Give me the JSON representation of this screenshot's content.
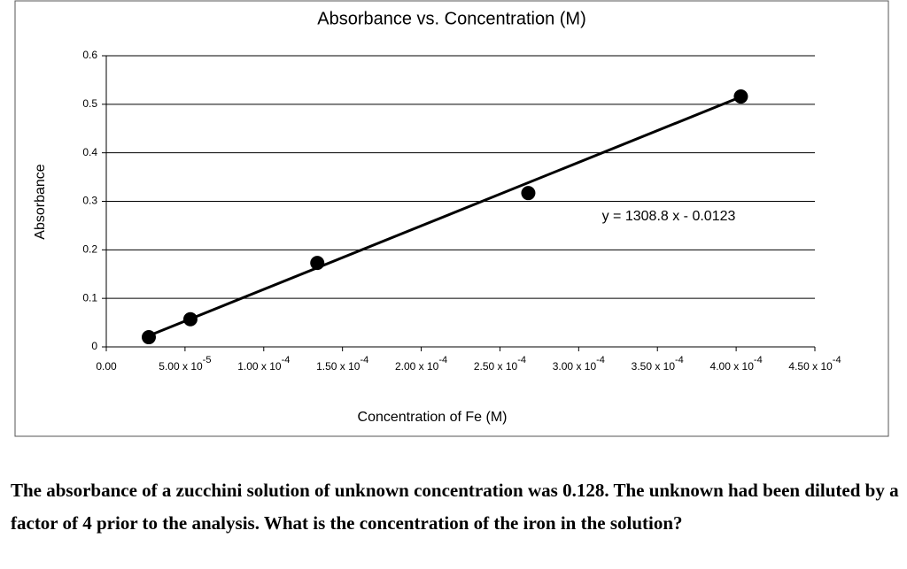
{
  "chart_data": {
    "type": "scatter",
    "title": "Absorbance vs. Concentration (M)",
    "x_label": "Concentration of Fe (M)",
    "y_label": "Absorbance",
    "x": [
      2.7e-05,
      5.34e-05,
      0.000134,
      0.000268,
      0.000403
    ],
    "values": [
      0.02,
      0.057,
      0.173,
      0.317,
      0.516
    ],
    "color": "#000000",
    "trendline": {
      "slope": 1308.8,
      "intercept": -0.0123,
      "label": "y = 1308.8 x - 0.0123"
    },
    "xlim": [
      0,
      0.00045
    ],
    "xticks": [
      {
        "value": 0,
        "label": "0.00"
      },
      {
        "value": 5e-05,
        "label": "5.00 x 10",
        "exponent": "-5"
      },
      {
        "value": 0.0001,
        "label": "1.00 x 10",
        "exponent": "-4"
      },
      {
        "value": 0.00015,
        "label": "1.50 x 10",
        "exponent": "-4"
      },
      {
        "value": 0.0002,
        "label": "2.00 x 10",
        "exponent": "-4"
      },
      {
        "value": 0.00025,
        "label": "2.50 x 10",
        "exponent": "-4"
      },
      {
        "value": 0.0003,
        "label": "3.00 x 10",
        "exponent": "-4"
      },
      {
        "value": 0.00035,
        "label": "3.50 x 10",
        "exponent": "-4"
      },
      {
        "value": 0.0004,
        "label": "4.00 x 10",
        "exponent": "-4"
      },
      {
        "value": 0.00045,
        "label": "4.50 x 10",
        "exponent": "-4"
      }
    ],
    "ylim": [
      0,
      0.6
    ],
    "yticks": [
      0,
      0.1,
      0.2,
      0.3,
      0.4,
      0.5,
      0.6
    ],
    "grid": true
  },
  "question": "The absorbance of a zucchini solution of unknown concentration was 0.128. The unknown had been diluted by a factor of 4 prior to the analysis. What is the concentration of the iron in the solution?"
}
